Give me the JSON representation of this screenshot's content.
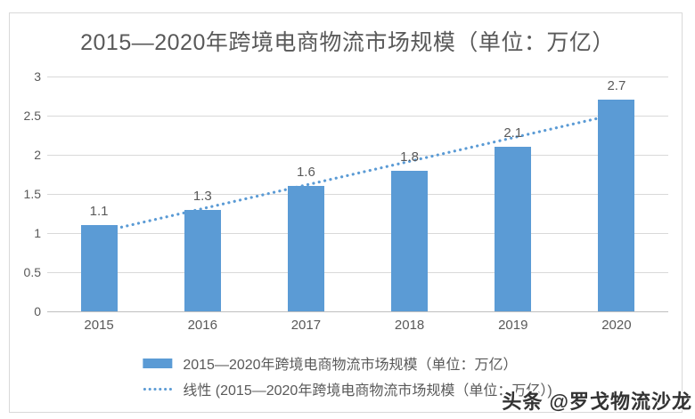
{
  "chart_data": {
    "type": "bar",
    "title": "2015—2020年跨境电商物流市场规模（单位：万亿）",
    "categories": [
      "2015",
      "2016",
      "2017",
      "2018",
      "2019",
      "2020"
    ],
    "values": [
      1.1,
      1.3,
      1.6,
      1.8,
      2.1,
      2.7
    ],
    "value_labels": [
      "1.1",
      "1.3",
      "1.6",
      "1.8",
      "2.1",
      "2.7"
    ],
    "series_name": "2015—2020年跨境电商物流市场规模（单位：万亿）",
    "ylim": [
      0,
      3
    ],
    "yticks": [
      0,
      0.5,
      1,
      1.5,
      2,
      2.5,
      3
    ],
    "ytick_labels": [
      "0",
      "0.5",
      "1",
      "1.5",
      "2",
      "2.5",
      "3"
    ],
    "xlabel": "",
    "ylabel": "",
    "grid": true,
    "legend_position": "bottom",
    "trendline": {
      "type": "linear",
      "name": "线性 (2015—2020年跨境电商物流市场规模（单位：万亿）)",
      "start_value": 1.01,
      "end_value": 2.52,
      "style": "dotted"
    },
    "colors": {
      "bar": "#5b9bd5",
      "trendline": "#5b9bd5",
      "gridline": "#d9d9d9",
      "axis_line": "#bfbfbf",
      "text": "#595959",
      "frame_border": "#d9d9d9"
    }
  },
  "legend": {
    "items": [
      {
        "swatch": "bar-swatch",
        "label": "2015—2020年跨境电商物流市场规模（单位：万亿）"
      },
      {
        "swatch": "dotted-line-swatch",
        "label": "线性 (2015—2020年跨境电商物流市场规模（单位：万亿）)"
      }
    ]
  },
  "watermark": {
    "text": "头条 @罗戈物流沙龙"
  }
}
